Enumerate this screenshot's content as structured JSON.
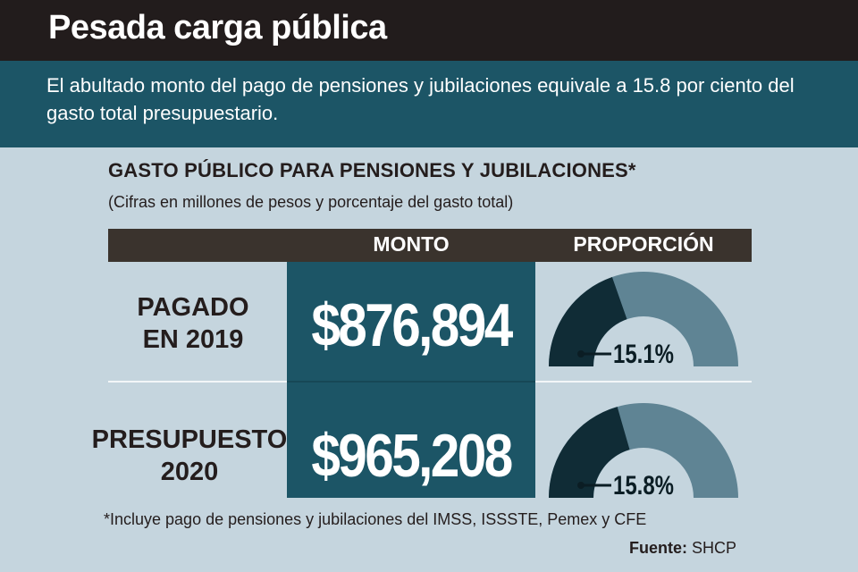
{
  "header": {
    "title": "Pesada carga pública",
    "subtitle": "El abultado monto del pago de pensiones y jubilaciones equivale a 15.8 por ciento del gasto total presupuestario."
  },
  "chart_data": {
    "type": "table",
    "title": "GASTO PÚBLICO PARA PENSIONES Y JUBILACIONES*",
    "subtitle": "(Cifras en millones de pesos y porcentaje del gasto total)",
    "columns": [
      "MONTO",
      "PROPORCIÓN"
    ],
    "rows": [
      {
        "label_line1": "PAGADO",
        "label_line2": "EN 2019",
        "monto": "$876,894",
        "monto_value": 876894,
        "proporcion": "15.1%",
        "proporcion_value": 15.1
      },
      {
        "label_line1": "PRESUPUESTO",
        "label_line2": "2020",
        "monto": "$965,208",
        "monto_value": 965208,
        "proporcion": "15.8%",
        "proporcion_value": 15.8
      }
    ],
    "colors": {
      "monto_bg": "#1c5566",
      "gauge_track": "#5f8494",
      "gauge_fill": "#102c36"
    }
  },
  "footer": {
    "footnote": "*Incluye pago de pensiones y jubilaciones del IMSS, ISSSTE, Pemex y CFE",
    "source_label": "Fuente:",
    "source_value": "SHCP"
  }
}
